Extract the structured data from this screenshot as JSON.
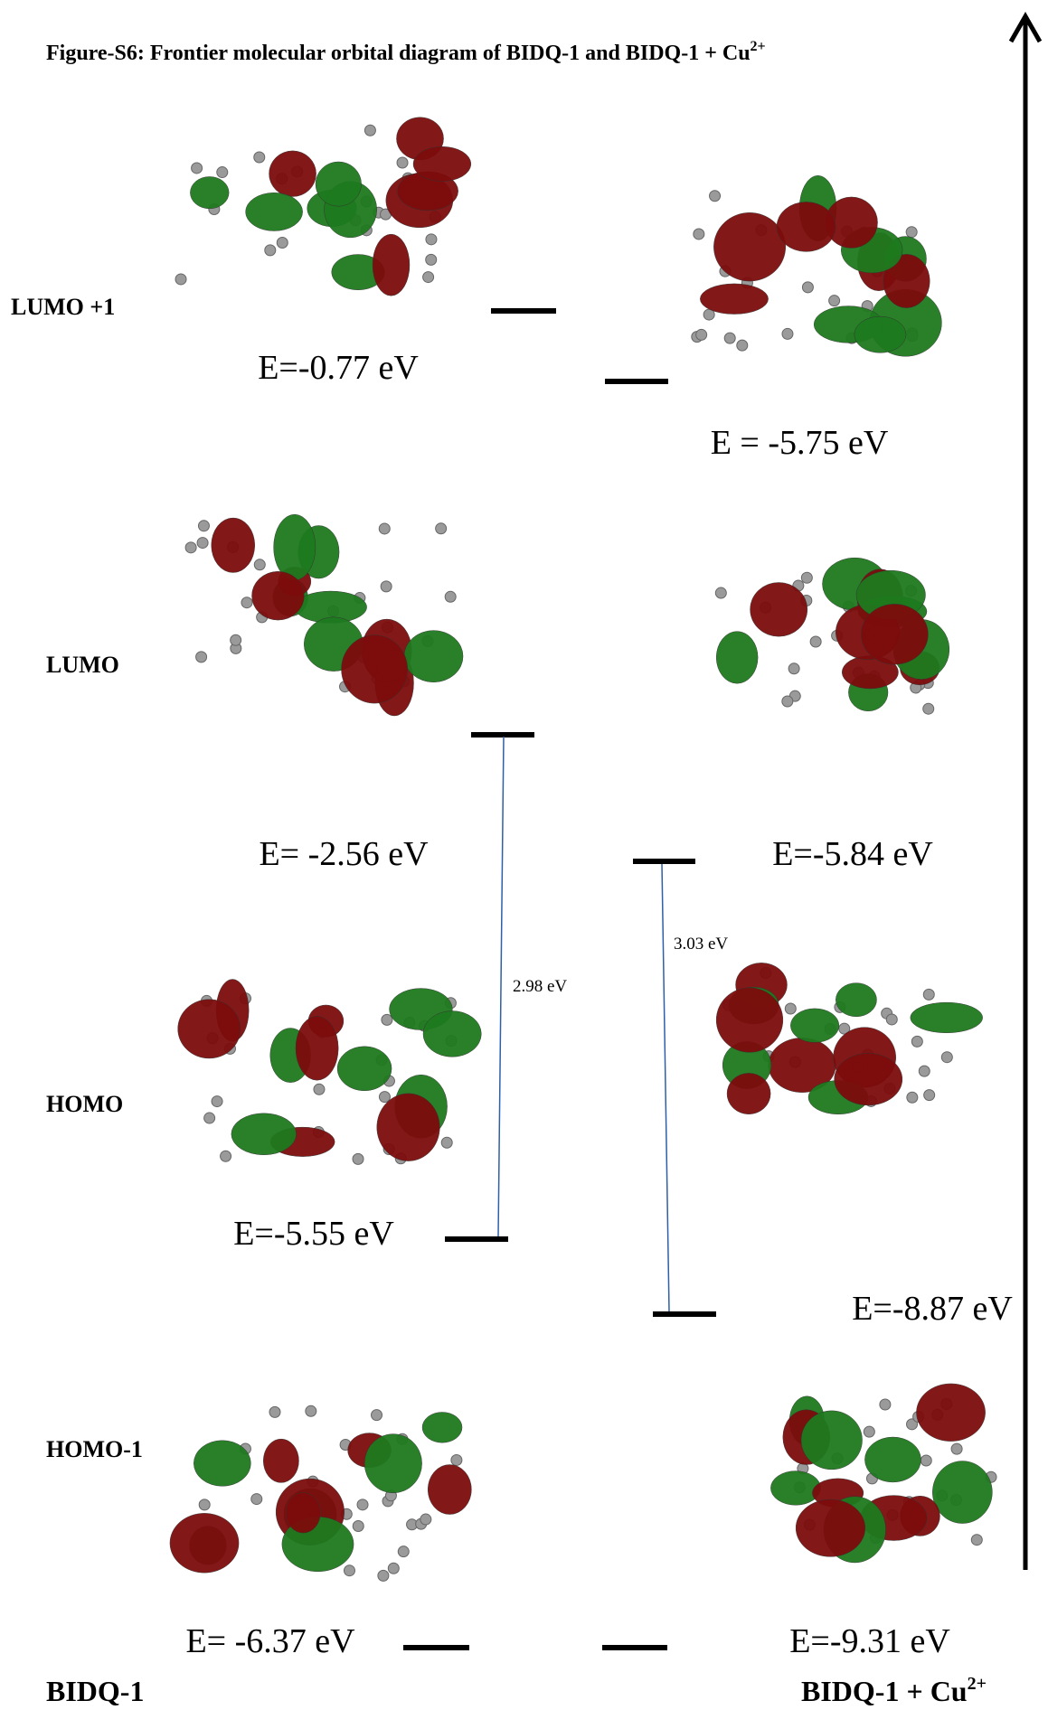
{
  "title": {
    "text": "Figure-S6: Frontier molecular orbital diagram of BIDQ-1 and BIDQ-1 + Cu",
    "superscript": "2+"
  },
  "orbitals": [
    {
      "label": "LUMO +1",
      "bidq_energy": "E=-0.77 eV",
      "complex_energy": "E = -5.75 eV"
    },
    {
      "label": "LUMO",
      "bidq_energy": "E= -2.56 eV",
      "complex_energy": "E=-5.84 eV"
    },
    {
      "label": "HOMO",
      "bidq_energy": "E=-5.55 eV",
      "complex_energy": "E=-8.87 eV"
    },
    {
      "label": "HOMO-1",
      "bidq_energy": "E= -6.37 eV",
      "complex_energy": "E=-9.31 eV"
    }
  ],
  "gaps": {
    "bidq": "2.98 eV",
    "complex": "3.03 eV"
  },
  "footer": {
    "bidq": "BIDQ-1",
    "complex": "BIDQ-1 + Cu",
    "complex_superscript": "2+"
  }
}
